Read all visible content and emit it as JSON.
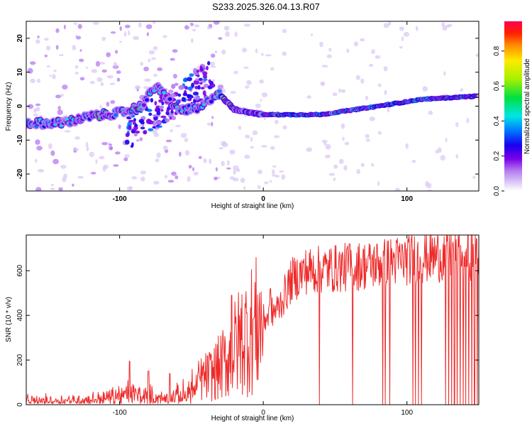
{
  "title": "S233.2025.326.04.13.R07",
  "colors": {
    "line": "#ee2a2a",
    "axis": "#000000",
    "background": "#ffffff",
    "colormap": [
      "#ffffff",
      "#dccaf6",
      "#b57af0",
      "#7a00e8",
      "#1800f0",
      "#0070ff",
      "#00e6e6",
      "#00e040",
      "#a8f000",
      "#ffea00",
      "#ff8a00",
      "#ff2000",
      "#ff0050"
    ]
  },
  "chart_data": [
    {
      "type": "heatmap",
      "id": "spectrogram",
      "xlabel": "Height of straight line (km)",
      "ylabel": "Frequency (Hz)",
      "xlim": [
        -165,
        150
      ],
      "ylim": [
        -25,
        25
      ],
      "xticks": [
        -100,
        0,
        100
      ],
      "yticks": [
        -20,
        -10,
        0,
        10,
        20
      ],
      "colorbar": {
        "label": "Normalized spectral amplitude",
        "range": [
          0,
          0.97
        ],
        "ticks": [
          0,
          0.2,
          0.4,
          0.6,
          0.8
        ],
        "tick_labels": [
          "0.0",
          "0.2",
          "0.4",
          "0.6",
          "0.8"
        ]
      },
      "ridge": [
        {
          "x": -160,
          "y": -5
        },
        {
          "x": -140,
          "y": -5
        },
        {
          "x": -120,
          "y": -3
        },
        {
          "x": -100,
          "y": -2
        },
        {
          "x": -85,
          "y": 0
        },
        {
          "x": -75,
          "y": 6
        },
        {
          "x": -60,
          "y": -1
        },
        {
          "x": -45,
          "y": -1
        },
        {
          "x": -32,
          "y": 4
        },
        {
          "x": -20,
          "y": -1
        },
        {
          "x": 0,
          "y": -2.5
        },
        {
          "x": 40,
          "y": -2.5
        },
        {
          "x": 80,
          "y": 0
        },
        {
          "x": 110,
          "y": 2
        },
        {
          "x": 150,
          "y": 3
        }
      ]
    },
    {
      "type": "line",
      "id": "snr",
      "xlabel": "Height of straight line (km)",
      "ylabel": "SNR (10 * v/v)",
      "xlim": [
        -165,
        150
      ],
      "ylim": [
        0,
        760
      ],
      "xticks": [
        -100,
        0,
        100
      ],
      "yticks": [
        0,
        200,
        400,
        600
      ],
      "series": [
        {
          "name": "SNR",
          "envelope": [
            {
              "x": -165,
              "y": 20
            },
            {
              "x": -120,
              "y": 25
            },
            {
              "x": -105,
              "y": 40
            },
            {
              "x": -90,
              "y": 55
            },
            {
              "x": -70,
              "y": 30
            },
            {
              "x": -55,
              "y": 50
            },
            {
              "x": -45,
              "y": 110
            },
            {
              "x": -35,
              "y": 140
            },
            {
              "x": -25,
              "y": 200
            },
            {
              "x": -15,
              "y": 300
            },
            {
              "x": 0,
              "y": 380
            },
            {
              "x": 10,
              "y": 430
            },
            {
              "x": 20,
              "y": 560
            },
            {
              "x": 30,
              "y": 600
            },
            {
              "x": 50,
              "y": 610
            },
            {
              "x": 80,
              "y": 630
            },
            {
              "x": 110,
              "y": 660
            },
            {
              "x": 150,
              "y": 680
            }
          ],
          "spikes": [
            {
              "x": -93,
              "y": 195
            },
            {
              "x": -80,
              "y": 150
            },
            {
              "x": -65,
              "y": 140
            },
            {
              "x": -22,
              "y": 490
            },
            {
              "x": 5,
              "y": 520
            },
            {
              "x": 60,
              "y": 720
            }
          ],
          "dropouts_to_zero_at_x": [
            39,
            62,
            83,
            85,
            88,
            104,
            106,
            108,
            110,
            127,
            129,
            131,
            133,
            135,
            137,
            139,
            141,
            143,
            145,
            147,
            149
          ]
        }
      ]
    }
  ]
}
